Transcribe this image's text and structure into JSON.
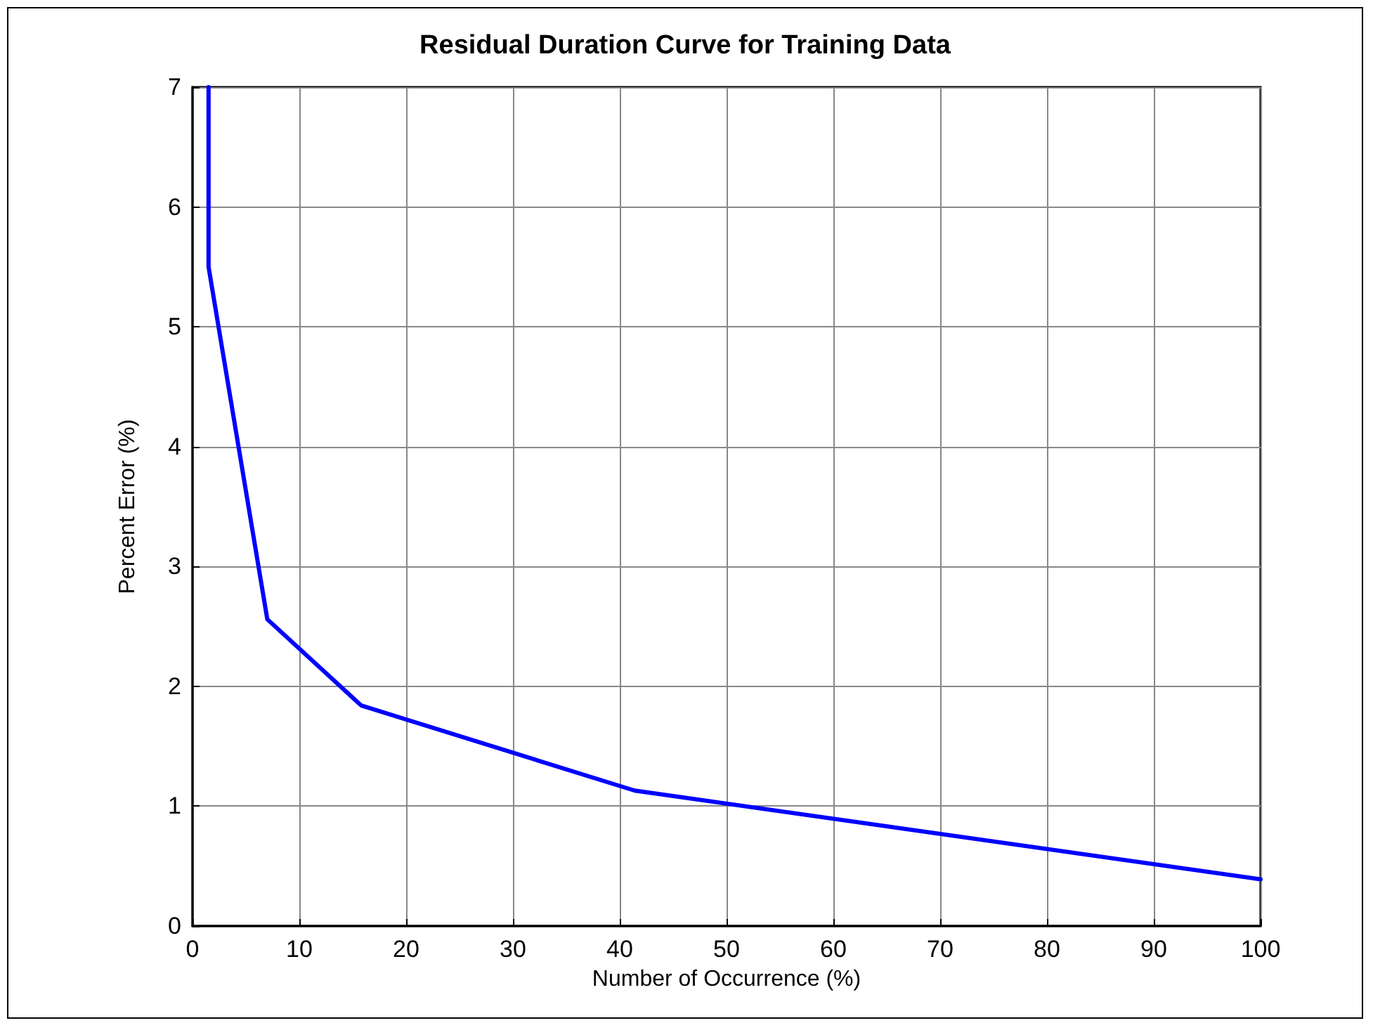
{
  "chart_data": {
    "type": "line",
    "title": "Residual Duration Curve for Training Data",
    "xlabel": "Number of Occurrence (%)",
    "ylabel": "Percent Error (%)",
    "x": [
      1.5,
      1.5,
      7,
      15.8,
      41.4,
      100
    ],
    "series": [
      {
        "color": "#0000ff",
        "values": [
          7,
          5.5,
          2.56,
          1.84,
          1.13,
          0.39
        ]
      }
    ],
    "xlim": [
      0,
      100
    ],
    "xticks": [
      0,
      10,
      20,
      30,
      40,
      50,
      60,
      70,
      80,
      90,
      100
    ],
    "ylim": [
      0,
      7
    ],
    "yticks": [
      0,
      1,
      2,
      3,
      4,
      5,
      6,
      7
    ],
    "grid": true,
    "marker": "none",
    "line_style": "solid"
  }
}
